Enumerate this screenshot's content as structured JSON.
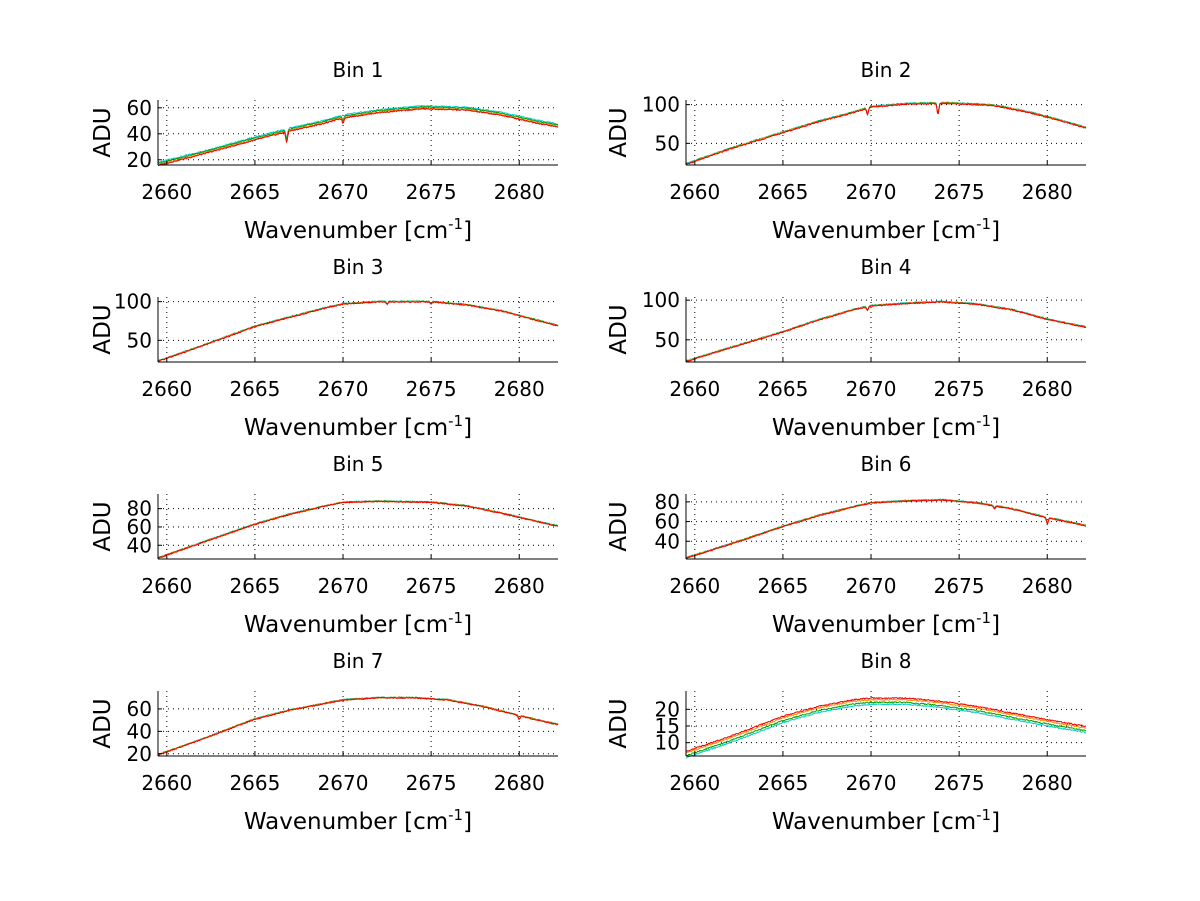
{
  "chart_data": [
    {
      "type": "line",
      "title": "Bin 1",
      "xlabel": "Wavenumber [cm",
      "xlabel_sup": "-1",
      "xlabel_end": "]",
      "ylabel": "ADU",
      "xlim": [
        2659.5,
        2682.2
      ],
      "ylim": [
        16,
        66
      ],
      "xticks": [
        2660,
        2665,
        2670,
        2675,
        2680
      ],
      "yticks": [
        20,
        40,
        60
      ],
      "grid": true,
      "profile": [
        [
          2659.5,
          16.5
        ],
        [
          2662,
          25
        ],
        [
          2665,
          36
        ],
        [
          2667,
          43
        ],
        [
          2669,
          49
        ],
        [
          2670,
          53
        ],
        [
          2672,
          57
        ],
        [
          2674.5,
          60
        ],
        [
          2677,
          59
        ],
        [
          2679,
          55
        ],
        [
          2681,
          49
        ],
        [
          2682.2,
          46
        ]
      ],
      "dips": [
        [
          2666.8,
          8
        ],
        [
          2670,
          4
        ]
      ],
      "series": [
        {
          "color": "#00cccc",
          "offset": 1.5
        },
        {
          "color": "#00a000",
          "offset": 0.7
        },
        {
          "color": "#ff8c00",
          "offset": -0.3
        },
        {
          "color": "#ee0000",
          "offset": -0.8
        }
      ]
    },
    {
      "type": "line",
      "title": "Bin 2",
      "xlabel": "Wavenumber [cm",
      "xlabel_sup": "-1",
      "xlabel_end": "]",
      "ylabel": "ADU",
      "xlim": [
        2659.5,
        2682.2
      ],
      "ylim": [
        22,
        106
      ],
      "xticks": [
        2660,
        2665,
        2670,
        2675,
        2680
      ],
      "yticks": [
        50,
        100
      ],
      "grid": true,
      "profile": [
        [
          2659.5,
          23
        ],
        [
          2662,
          43
        ],
        [
          2665,
          64
        ],
        [
          2667,
          78
        ],
        [
          2669,
          90
        ],
        [
          2670,
          97
        ],
        [
          2672,
          101
        ],
        [
          2674.5,
          102
        ],
        [
          2677,
          99
        ],
        [
          2679,
          90
        ],
        [
          2681,
          78
        ],
        [
          2682.2,
          70
        ]
      ],
      "dips": [
        [
          2669.8,
          8
        ],
        [
          2673.8,
          14
        ]
      ],
      "series": [
        {
          "color": "#00cccc",
          "offset": 0.8
        },
        {
          "color": "#00a000",
          "offset": 0.4
        },
        {
          "color": "#ff8c00",
          "offset": 0
        },
        {
          "color": "#ee0000",
          "offset": -0.4
        }
      ]
    },
    {
      "type": "line",
      "title": "Bin 3",
      "xlabel": "Wavenumber [cm",
      "xlabel_sup": "-1",
      "xlabel_end": "]",
      "ylabel": "ADU",
      "xlim": [
        2659.5,
        2682.2
      ],
      "ylim": [
        22,
        106
      ],
      "xticks": [
        2660,
        2665,
        2670,
        2675,
        2680
      ],
      "yticks": [
        50,
        100
      ],
      "grid": true,
      "profile": [
        [
          2659.5,
          23
        ],
        [
          2662,
          43
        ],
        [
          2665,
          68
        ],
        [
          2667,
          80
        ],
        [
          2669,
          92
        ],
        [
          2670,
          97
        ],
        [
          2672,
          100
        ],
        [
          2675,
          100
        ],
        [
          2677,
          96
        ],
        [
          2679,
          88
        ],
        [
          2681,
          76
        ],
        [
          2682.2,
          69
        ]
      ],
      "dips": [
        [
          2672.5,
          3
        ],
        [
          2675,
          3
        ]
      ],
      "series": [
        {
          "color": "#00cccc",
          "offset": 0.5
        },
        {
          "color": "#00a000",
          "offset": 0.2
        },
        {
          "color": "#ff8c00",
          "offset": 0
        },
        {
          "color": "#ee0000",
          "offset": -0.3
        }
      ]
    },
    {
      "type": "line",
      "title": "Bin 4",
      "xlabel": "Wavenumber [cm",
      "xlabel_sup": "-1",
      "xlabel_end": "]",
      "ylabel": "ADU",
      "xlim": [
        2659.5,
        2682.2
      ],
      "ylim": [
        22,
        104
      ],
      "xticks": [
        2660,
        2665,
        2670,
        2675,
        2680
      ],
      "yticks": [
        50,
        100
      ],
      "grid": true,
      "profile": [
        [
          2659.5,
          23
        ],
        [
          2662,
          40
        ],
        [
          2665,
          60
        ],
        [
          2667,
          75
        ],
        [
          2669,
          88
        ],
        [
          2670,
          93
        ],
        [
          2672,
          96
        ],
        [
          2674,
          98
        ],
        [
          2676,
          95
        ],
        [
          2678,
          88
        ],
        [
          2680,
          76
        ],
        [
          2682.2,
          66
        ]
      ],
      "dips": [
        [
          2669.8,
          5
        ]
      ],
      "series": [
        {
          "color": "#00cccc",
          "offset": 0.5
        },
        {
          "color": "#00a000",
          "offset": 0.2
        },
        {
          "color": "#ff8c00",
          "offset": 0
        },
        {
          "color": "#ee0000",
          "offset": -0.3
        }
      ]
    },
    {
      "type": "line",
      "title": "Bin 5",
      "xlabel": "Wavenumber [cm",
      "xlabel_sup": "-1",
      "xlabel_end": "]",
      "ylabel": "ADU",
      "xlim": [
        2659.5,
        2682.2
      ],
      "ylim": [
        25,
        96
      ],
      "xticks": [
        2660,
        2665,
        2670,
        2675,
        2680
      ],
      "yticks": [
        40,
        60,
        80
      ],
      "grid": true,
      "profile": [
        [
          2659.5,
          26
        ],
        [
          2662,
          43
        ],
        [
          2665,
          63
        ],
        [
          2667,
          74
        ],
        [
          2669,
          83
        ],
        [
          2670,
          87
        ],
        [
          2672,
          88
        ],
        [
          2675,
          87
        ],
        [
          2677,
          83
        ],
        [
          2679,
          75
        ],
        [
          2681,
          66
        ],
        [
          2682.2,
          61
        ]
      ],
      "dips": [],
      "series": [
        {
          "color": "#00cccc",
          "offset": 0.4
        },
        {
          "color": "#00a000",
          "offset": 0.2
        },
        {
          "color": "#ff8c00",
          "offset": 0
        },
        {
          "color": "#ee0000",
          "offset": -0.2
        }
      ]
    },
    {
      "type": "line",
      "title": "Bin 6",
      "xlabel": "Wavenumber [cm",
      "xlabel_sup": "-1",
      "xlabel_end": "]",
      "ylabel": "ADU",
      "xlim": [
        2659.5,
        2682.2
      ],
      "ylim": [
        22,
        88
      ],
      "xticks": [
        2660,
        2665,
        2670,
        2675,
        2680
      ],
      "yticks": [
        40,
        60,
        80
      ],
      "grid": true,
      "profile": [
        [
          2659.5,
          23
        ],
        [
          2662,
          37
        ],
        [
          2665,
          55
        ],
        [
          2667,
          66
        ],
        [
          2669,
          75
        ],
        [
          2670,
          79
        ],
        [
          2672,
          81
        ],
        [
          2674,
          82
        ],
        [
          2676,
          79
        ],
        [
          2678,
          73
        ],
        [
          2680,
          64
        ],
        [
          2682.2,
          56
        ]
      ],
      "dips": [
        [
          2680,
          6
        ],
        [
          2677,
          3
        ]
      ],
      "series": [
        {
          "color": "#00cccc",
          "offset": 0.4
        },
        {
          "color": "#00a000",
          "offset": 0.2
        },
        {
          "color": "#ff8c00",
          "offset": 0
        },
        {
          "color": "#ee0000",
          "offset": -0.2
        }
      ]
    },
    {
      "type": "line",
      "title": "Bin 7",
      "xlabel": "Wavenumber [cm",
      "xlabel_sup": "-1",
      "xlabel_end": "]",
      "ylabel": "ADU",
      "xlim": [
        2659.5,
        2682.2
      ],
      "ylim": [
        18,
        76
      ],
      "xticks": [
        2660,
        2665,
        2670,
        2675,
        2680
      ],
      "yticks": [
        20,
        40,
        60
      ],
      "grid": true,
      "profile": [
        [
          2659.5,
          19
        ],
        [
          2662,
          33
        ],
        [
          2665,
          51
        ],
        [
          2667,
          59
        ],
        [
          2669,
          65
        ],
        [
          2670,
          68
        ],
        [
          2672,
          70
        ],
        [
          2674,
          70
        ],
        [
          2676,
          68
        ],
        [
          2678,
          62
        ],
        [
          2680,
          54
        ],
        [
          2682.2,
          46
        ]
      ],
      "dips": [
        [
          2680,
          3
        ]
      ],
      "series": [
        {
          "color": "#00cccc",
          "offset": 0.3
        },
        {
          "color": "#00a000",
          "offset": 0.15
        },
        {
          "color": "#ff8c00",
          "offset": 0
        },
        {
          "color": "#ee0000",
          "offset": -0.15
        }
      ]
    },
    {
      "type": "line",
      "title": "Bin 8",
      "xlabel": "Wavenumber [cm",
      "xlabel_sup": "-1",
      "xlabel_end": "]",
      "ylabel": "ADU",
      "xlim": [
        2659.5,
        2682.2
      ],
      "ylim": [
        6,
        25.5
      ],
      "xticks": [
        2660,
        2665,
        2670,
        2675,
        2680
      ],
      "yticks": [
        10,
        15,
        20
      ],
      "grid": true,
      "profile": [
        [
          2659.5,
          6.5
        ],
        [
          2662,
          11
        ],
        [
          2665,
          17
        ],
        [
          2667,
          20
        ],
        [
          2669,
          22
        ],
        [
          2670,
          22.5
        ],
        [
          2672,
          22.5
        ],
        [
          2674,
          21.5
        ],
        [
          2676,
          20
        ],
        [
          2678,
          18
        ],
        [
          2680,
          16
        ],
        [
          2682.2,
          14
        ]
      ],
      "dips": [],
      "series": [
        {
          "color": "#00cccc",
          "offset": -1.0
        },
        {
          "color": "#00a000",
          "offset": -0.4
        },
        {
          "color": "#ff8c00",
          "offset": 0.4
        },
        {
          "color": "#ee0000",
          "offset": 0.9
        }
      ]
    }
  ]
}
